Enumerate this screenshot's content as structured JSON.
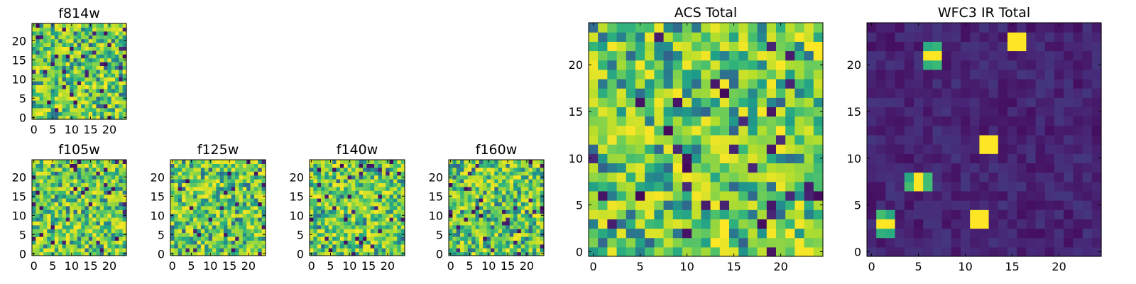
{
  "chart_data": [
    {
      "type": "heatmap",
      "title": "f814w",
      "xticks": [
        0,
        5,
        10,
        15,
        20
      ],
      "yticks": [
        0,
        5,
        10,
        15,
        20
      ],
      "xlim": [
        -0.5,
        24.5
      ],
      "ylim": [
        -0.5,
        24.5
      ],
      "colormap": "viridis",
      "grid": "25x25",
      "grid_lines": false
    },
    {
      "type": "heatmap",
      "title": "f105w",
      "xticks": [
        0,
        5,
        10,
        15,
        20
      ],
      "yticks": [
        0,
        5,
        10,
        15,
        20
      ],
      "xlim": [
        -0.5,
        24.5
      ],
      "ylim": [
        -0.5,
        24.5
      ],
      "colormap": "viridis",
      "grid": "25x25",
      "grid_lines": false
    },
    {
      "type": "heatmap",
      "title": "f125w",
      "xticks": [
        0,
        5,
        10,
        15,
        20
      ],
      "yticks": [
        0,
        5,
        10,
        15,
        20
      ],
      "xlim": [
        -0.5,
        24.5
      ],
      "ylim": [
        -0.5,
        24.5
      ],
      "colormap": "viridis",
      "grid": "25x25",
      "grid_lines": false
    },
    {
      "type": "heatmap",
      "title": "f140w",
      "xticks": [
        0,
        5,
        10,
        15,
        20
      ],
      "yticks": [
        0,
        5,
        10,
        15,
        20
      ],
      "xlim": [
        -0.5,
        24.5
      ],
      "ylim": [
        -0.5,
        24.5
      ],
      "colormap": "viridis",
      "grid": "25x25",
      "grid_lines": false
    },
    {
      "type": "heatmap",
      "title": "f160w",
      "xticks": [
        0,
        5,
        10,
        15,
        20
      ],
      "yticks": [
        0,
        5,
        10,
        15,
        20
      ],
      "xlim": [
        -0.5,
        24.5
      ],
      "ylim": [
        -0.5,
        24.5
      ],
      "colormap": "viridis",
      "grid": "25x25",
      "grid_lines": false
    },
    {
      "type": "heatmap",
      "title": "ACS Total",
      "xticks": [
        0,
        5,
        10,
        15,
        20
      ],
      "yticks": [
        0,
        5,
        10,
        15,
        20
      ],
      "xlim": [
        -0.5,
        24.5
      ],
      "ylim": [
        -0.5,
        24.5
      ],
      "colormap": "viridis",
      "grid": "25x25",
      "grid_lines": false
    },
    {
      "type": "heatmap",
      "title": "WFC3 IR Total",
      "xticks": [
        0,
        5,
        10,
        15,
        20
      ],
      "yticks": [
        0,
        5,
        10,
        15,
        20
      ],
      "xlim": [
        -0.5,
        24.5
      ],
      "ylim": [
        -0.5,
        24.5
      ],
      "colormap": "viridis",
      "grid": "25x25",
      "grid_lines": false,
      "bright_sources": [
        {
          "x": 1.5,
          "y": 3
        },
        {
          "x": 5,
          "y": 7.5
        },
        {
          "x": 6.5,
          "y": 21
        },
        {
          "x": 11.5,
          "y": 3.5
        },
        {
          "x": 12.5,
          "y": 11.5
        },
        {
          "x": 15.5,
          "y": 22.5
        }
      ]
    }
  ]
}
